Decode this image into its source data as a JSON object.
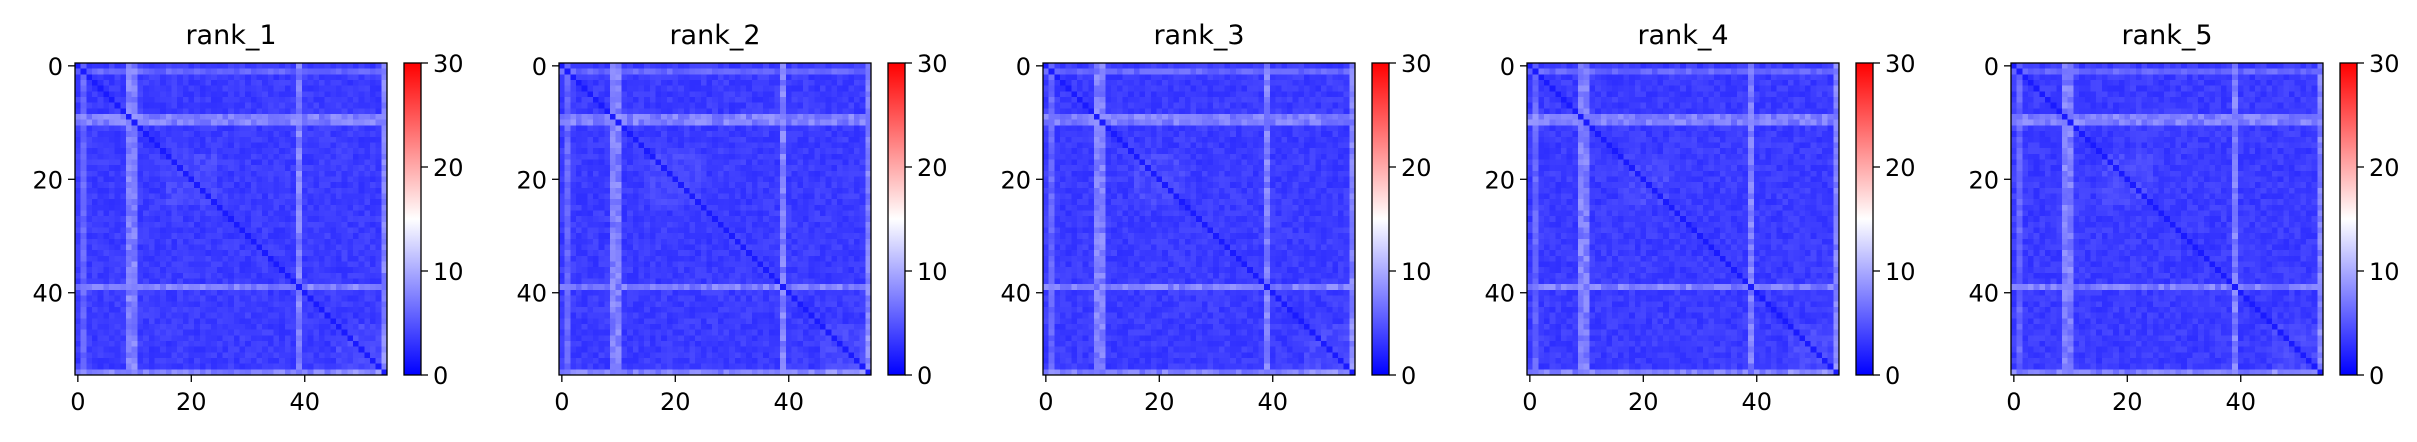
{
  "chart_data": {
    "type": "heatmap",
    "colormap": "bwr",
    "panels": [
      {
        "title": "rank_1"
      },
      {
        "title": "rank_2"
      },
      {
        "title": "rank_3"
      },
      {
        "title": "rank_4"
      },
      {
        "title": "rank_5"
      }
    ],
    "matrix_size": 55,
    "x_ticks": [
      0,
      20,
      40
    ],
    "y_ticks": [
      0,
      20,
      40
    ],
    "colorbar": {
      "min": 0,
      "max": 30,
      "ticks": [
        0,
        10,
        20,
        30
      ]
    },
    "value_summary": {
      "base": 3.5,
      "diagonal": 1.5,
      "bright_rows": [
        9,
        10,
        39,
        54
      ],
      "bright_row_value": 7.5,
      "bright_cols": [
        1,
        54
      ],
      "bright_col_value": 6.0
    },
    "colors": {
      "low": "#0000ff",
      "mid": "#ffffff",
      "high": "#ff0000"
    }
  }
}
